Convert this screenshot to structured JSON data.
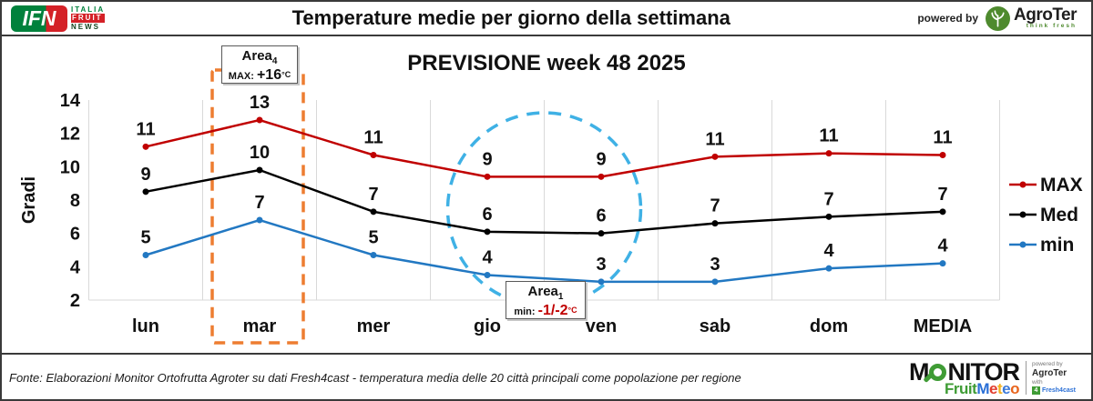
{
  "header": {
    "ifn_logo": {
      "text": "IFN",
      "italia": "ITALIA",
      "fruit": "FRUIT",
      "news": "NEWS"
    },
    "title": "Temperature medie per giorno della settimana",
    "powered_by": "powered by",
    "agroter_name": "AgroTer",
    "agroter_tagline": "think fresh"
  },
  "chart_data": {
    "type": "line",
    "title": "PREVISIONE week 48 2025",
    "ylabel": "Gradi",
    "xlabel": "",
    "categories": [
      "lun",
      "mar",
      "mer",
      "gio",
      "ven",
      "sab",
      "dom",
      "MEDIA"
    ],
    "ylim": [
      2,
      14
    ],
    "y_ticks": [
      2,
      4,
      6,
      8,
      10,
      12,
      14
    ],
    "grid": "vertical-light",
    "legend_position": "right",
    "series": [
      {
        "name": "MAX",
        "color": "#c00000",
        "point_labels": [
          11,
          13,
          11,
          9,
          9,
          11,
          11,
          11
        ],
        "values": [
          11.2,
          12.8,
          10.7,
          9.4,
          9.4,
          10.6,
          10.8,
          10.7
        ]
      },
      {
        "name": "Med",
        "color": "#000000",
        "point_labels": [
          9,
          10,
          7,
          6,
          6,
          7,
          7,
          7
        ],
        "values": [
          8.5,
          9.8,
          7.3,
          6.1,
          6.0,
          6.6,
          7.0,
          7.3
        ]
      },
      {
        "name": "min",
        "color": "#2278c2",
        "point_labels": [
          5,
          7,
          5,
          4,
          3,
          3,
          4,
          4
        ],
        "values": [
          4.7,
          6.8,
          4.7,
          3.5,
          3.1,
          3.1,
          3.9,
          4.2
        ]
      }
    ],
    "annotations": [
      {
        "id": "area4",
        "title": "Area",
        "title_sub": "4",
        "prefix": "MAX:",
        "value": "+16",
        "unit": "°C",
        "value_color": "#000000",
        "highlight": "orange-dashed-rectangle",
        "highlight_color": "#ed7d31",
        "target": "mar"
      },
      {
        "id": "area1",
        "title": "Area",
        "title_sub": "1",
        "prefix": "min:",
        "value": "-1/-2",
        "unit": "°C",
        "value_color": "#c00000",
        "highlight": "blue-dashed-circle",
        "highlight_color": "#3fb1e5",
        "target": "gio-ven"
      }
    ]
  },
  "footer": {
    "source": "Fonte: Elaborazioni Monitor Ortofrutta Agroter su dati Fresh4cast - temperatura media delle 20 città principali come popolazione per regione",
    "monitor_logo": {
      "monitor_m": "M",
      "monitor_rest": "NITOR",
      "fruit": "Fruit",
      "meteo_letters": [
        {
          "ch": "M",
          "color": "#2a6fd6"
        },
        {
          "ch": "e",
          "color": "#e23d2e"
        },
        {
          "ch": "t",
          "color": "#f2b01e"
        },
        {
          "ch": "e",
          "color": "#3b78d8"
        },
        {
          "ch": "o",
          "color": "#e8641c"
        }
      ],
      "powered_by": "powered by",
      "agroter": "AgroTer",
      "with": "with",
      "fresh4cast": "Fresh4cast"
    }
  }
}
